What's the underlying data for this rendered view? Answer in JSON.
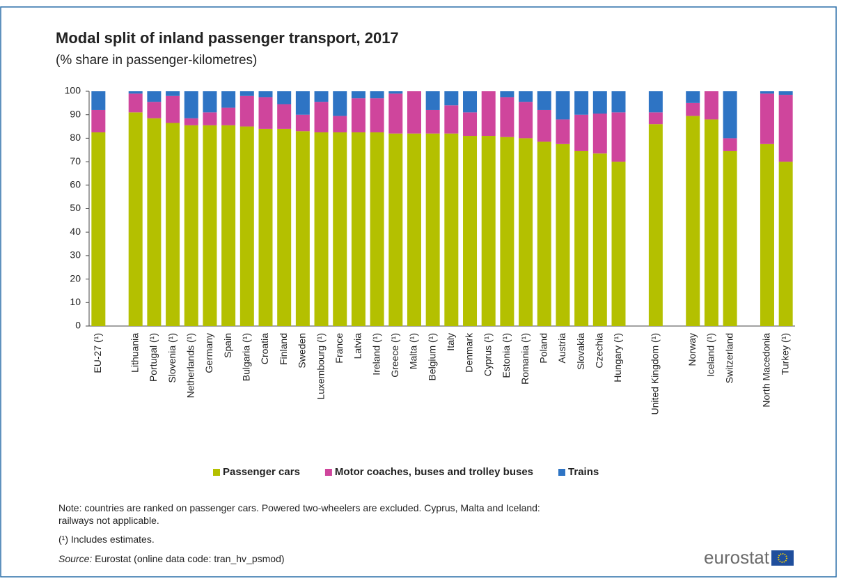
{
  "chart_data": {
    "type": "stacked_bar",
    "title": "Modal split of inland passenger transport, 2017",
    "subtitle": "(% share in passenger-kilometres)",
    "categories": [
      "EU-27 (¹)",
      null,
      "Lithuania",
      "Portugal (¹)",
      "Slovenia (¹)",
      "Netherlands (¹)",
      "Germany",
      "Spain",
      "Bulgaria (¹)",
      "Croatia",
      "Finland",
      "Sweden",
      "Luxembourg (¹)",
      "France",
      "Latvia",
      "Ireland (¹)",
      "Greece (¹)",
      "Malta (¹)",
      "Belgium (¹)",
      "Italy",
      "Denmark",
      "Cyprus (¹)",
      "Estonia (¹)",
      "Romania (¹)",
      "Poland",
      "Austria",
      "Slovakia",
      "Czechia",
      "Hungary (¹)",
      null,
      "United Kingdom (¹)",
      null,
      "Norway",
      "Iceland (¹)",
      "Switzerland",
      null,
      "North Macedonia",
      "Turkey (¹)"
    ],
    "series": [
      {
        "name": "Passenger cars",
        "color": "#b4c000",
        "values": [
          82.5,
          null,
          91,
          88.5,
          86.5,
          85.5,
          85.5,
          85.5,
          85,
          84,
          84,
          83,
          82.5,
          82.5,
          82.5,
          82.5,
          82,
          82,
          82,
          82,
          81,
          81,
          80.5,
          80,
          78.5,
          77.5,
          74.5,
          73.5,
          70,
          null,
          86,
          null,
          89.5,
          88,
          74.5,
          null,
          77.5,
          70
        ]
      },
      {
        "name": "Motor coaches, buses and trolley buses",
        "color": "#cf459c",
        "values": [
          9.5,
          null,
          8,
          7,
          11.5,
          3,
          5.5,
          7.5,
          13,
          13.5,
          10.5,
          7,
          13,
          7,
          14.5,
          14.5,
          17,
          18,
          10,
          12,
          10,
          19,
          17,
          15.5,
          13.5,
          10.5,
          15.5,
          17,
          21,
          null,
          5,
          null,
          5.5,
          12,
          5.5,
          null,
          21.5,
          28.5
        ]
      },
      {
        "name": "Trains",
        "color": "#2e74c4",
        "values": [
          8,
          null,
          1,
          4.5,
          2,
          11.5,
          9,
          7,
          2,
          2.5,
          5.5,
          10,
          4.5,
          10.5,
          3,
          3,
          1,
          0,
          8,
          6,
          9,
          0,
          2.5,
          4.5,
          8,
          12,
          10,
          9.5,
          9,
          null,
          9,
          null,
          5,
          0,
          20,
          null,
          1,
          1.5
        ]
      }
    ],
    "ylim": [
      0,
      100
    ],
    "yticks": [
      0,
      10,
      20,
      30,
      40,
      50,
      60,
      70,
      80,
      90,
      100
    ],
    "grid": false,
    "legend": "bottom",
    "notes": [
      "Note: countries are ranked on passenger cars. Powered two-wheelers are excluded. Cyprus, Malta and Iceland:",
      "railways not applicable.",
      "(¹) Includes estimates."
    ],
    "source_label": "Source:",
    "source": "Eurostat (online data code: tran_hv_psmod)",
    "logo": "eurostat"
  }
}
